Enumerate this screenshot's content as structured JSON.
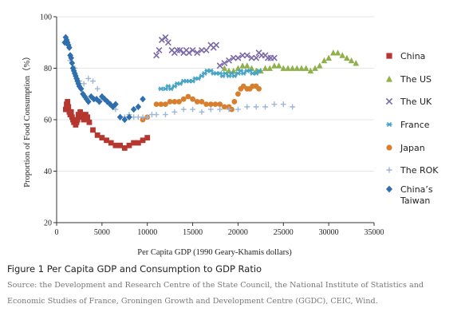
{
  "chart_data": {
    "type": "scatter",
    "xlabel": "Per Capita GDP (1990 Geary-Khamis dollars)",
    "ylabel": "Proportion of Food Consumption（%）",
    "xlim": [
      0,
      35000
    ],
    "ylim": [
      20,
      100
    ],
    "x_ticks": [
      0,
      5000,
      10000,
      15000,
      20000,
      25000,
      30000,
      35000
    ],
    "y_ticks": [
      20,
      40,
      60,
      80,
      100
    ],
    "legend_position": "right",
    "series": [
      {
        "name": "China",
        "color": "#b5372f",
        "marker": "square",
        "x": [
          1000,
          1100,
          1200,
          1300,
          1400,
          1500,
          1600,
          1700,
          1800,
          1900,
          2000,
          2100,
          2200,
          2300,
          2400,
          2600,
          2800,
          3000,
          3200,
          3400,
          3600,
          4000,
          4500,
          5000,
          5500,
          6000,
          6500,
          7000,
          7500,
          8000,
          8500,
          9000,
          9500,
          10000
        ],
        "y": [
          64,
          66,
          67,
          65,
          63,
          62,
          63,
          61,
          60,
          59,
          60,
          58,
          59,
          60,
          62,
          63,
          61,
          60,
          62,
          61,
          59,
          56,
          54,
          53,
          52,
          51,
          50,
          50,
          49,
          50,
          51,
          51,
          52,
          53
        ]
      },
      {
        "name": "The US",
        "color": "#8fb04a",
        "marker": "triangle",
        "x": [
          18500,
          19000,
          19500,
          20000,
          20500,
          21000,
          21500,
          22000,
          22500,
          23000,
          23500,
          24000,
          24500,
          25000,
          25500,
          26000,
          26500,
          27000,
          27500,
          28000,
          28500,
          29000,
          29500,
          30000,
          30500,
          31000,
          31500,
          32000,
          32500,
          33000
        ],
        "y": [
          80,
          79,
          79,
          80,
          81,
          81,
          80,
          79,
          79,
          80,
          80,
          81,
          81,
          80,
          80,
          80,
          80,
          80,
          80,
          79,
          80,
          81,
          83,
          84,
          86,
          86,
          85,
          84,
          83,
          82
        ]
      },
      {
        "name": "The UK",
        "color": "#7b6aa8",
        "marker": "x",
        "x": [
          11000,
          11300,
          11600,
          12000,
          12300,
          12700,
          13000,
          13300,
          13600,
          14000,
          14300,
          14600,
          15000,
          15500,
          16000,
          16500,
          17000,
          17300,
          17600,
          18000,
          18500,
          19000,
          19500,
          20000,
          20500,
          21000,
          21500,
          22000,
          22300,
          22600,
          23000,
          23300,
          23600,
          24000
        ],
        "y": [
          85,
          87,
          91,
          92,
          90,
          87,
          86,
          87,
          87,
          86,
          87,
          86,
          87,
          86,
          87,
          87,
          89,
          88,
          89,
          81,
          82,
          83,
          84,
          84,
          85,
          85,
          84,
          84,
          86,
          85,
          85,
          84,
          84,
          84
        ]
      },
      {
        "name": "France",
        "color": "#47a4c4",
        "marker": "asterisk",
        "x": [
          11500,
          12000,
          12300,
          12600,
          13000,
          13300,
          13600,
          14000,
          14300,
          14600,
          15000,
          15300,
          15600,
          16000,
          16300,
          16600,
          17000,
          17300,
          17600,
          18000,
          18300,
          18600,
          19000,
          19300,
          19600,
          20000,
          20300,
          20600,
          21000,
          21300,
          21600,
          22000,
          22300
        ],
        "y": [
          72,
          72,
          73,
          72,
          73,
          74,
          74,
          75,
          75,
          75,
          75,
          76,
          76,
          77,
          78,
          79,
          79,
          78,
          78,
          78,
          77,
          78,
          77,
          78,
          77,
          78,
          79,
          78,
          79,
          79,
          78,
          78,
          79
        ]
      },
      {
        "name": "Japan",
        "color": "#d77f2f",
        "marker": "circle",
        "x": [
          9500,
          10000,
          11000,
          11500,
          12000,
          12500,
          13000,
          13500,
          14000,
          14500,
          15000,
          15500,
          16000,
          16500,
          17000,
          17500,
          18000,
          18500,
          19000,
          19300,
          19600,
          20000,
          20300,
          20600,
          21000,
          21300,
          21600,
          22000,
          22300
        ],
        "y": [
          60,
          61,
          66,
          66,
          66,
          67,
          67,
          67,
          68,
          69,
          68,
          67,
          67,
          66,
          66,
          66,
          66,
          65,
          65,
          64,
          67,
          70,
          72,
          73,
          72,
          72,
          73,
          73,
          72
        ]
      },
      {
        "name": "The ROK",
        "color": "#9fb6d4",
        "marker": "plus",
        "x": [
          1500,
          2000,
          2200,
          2500,
          3000,
          3500,
          4000,
          4500,
          5000,
          5500,
          6000,
          6500,
          7000,
          7500,
          8000,
          8500,
          9000,
          9500,
          10000,
          10500,
          11000,
          12000,
          13000,
          14000,
          15000,
          16000,
          17000,
          18000,
          19000,
          20000,
          21000,
          22000,
          23000,
          24000,
          25000,
          26000
        ],
        "y": [
          83,
          80,
          76,
          75,
          74,
          76,
          75,
          72,
          68,
          67,
          66,
          64,
          61,
          61,
          62,
          61,
          61,
          61,
          61,
          62,
          62,
          62,
          63,
          64,
          64,
          63,
          64,
          64,
          64,
          64,
          65,
          65,
          65,
          66,
          66,
          65
        ]
      },
      {
        "name": "China’s Taiwan",
        "color": "#2f6fad",
        "marker": "diamond",
        "x": [
          900,
          1000,
          1100,
          1200,
          1300,
          1400,
          1500,
          1600,
          1700,
          1800,
          1900,
          2000,
          2100,
          2200,
          2300,
          2400,
          2500,
          2700,
          2900,
          3100,
          3300,
          3500,
          3800,
          4100,
          4400,
          4700,
          5000,
          5300,
          5600,
          5900,
          6200,
          6500,
          7000,
          7500,
          8000,
          8500,
          9000,
          9500
        ],
        "y": [
          90,
          92,
          91,
          90,
          89,
          88,
          85,
          84,
          82,
          80,
          79,
          78,
          77,
          76,
          75,
          74,
          73,
          72,
          70,
          69,
          68,
          67,
          69,
          68,
          68,
          67,
          69,
          68,
          67,
          66,
          65,
          66,
          61,
          60,
          61,
          64,
          65,
          68
        ]
      }
    ]
  },
  "caption": {
    "title": "Figure 1 Per Capita GDP and Consumption to GDP Ratio",
    "source": "Source: the Development and Research Centre of the State Council, the National Institute of Statistics and Economic Studies of France, Groningen Growth and Development Centre (GGDC), CEIC, Wind."
  }
}
